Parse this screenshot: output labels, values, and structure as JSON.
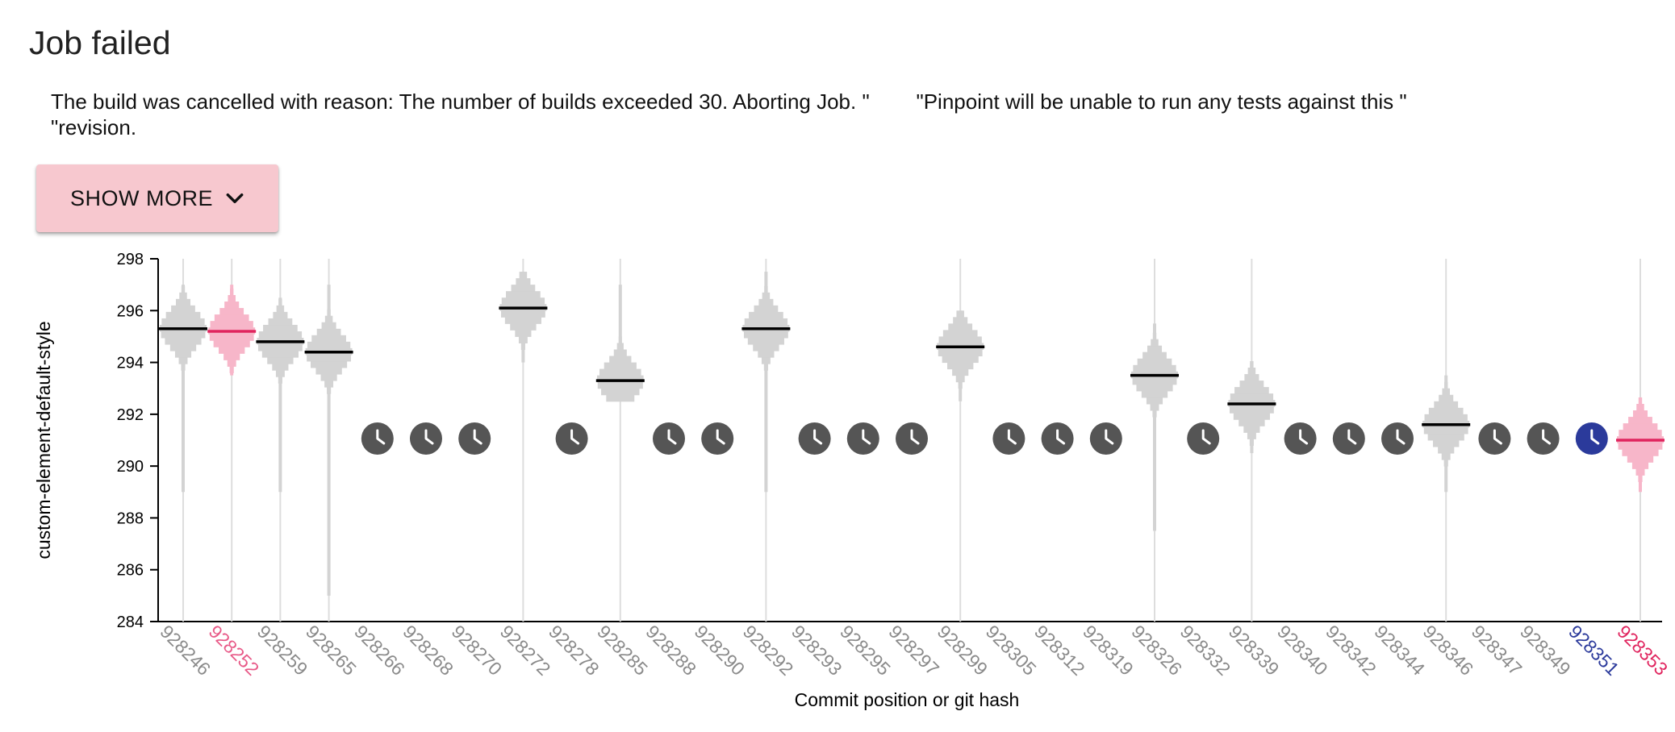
{
  "page": {
    "title": "Job failed",
    "message": "The build was cancelled with reason: The number of builds exceeded 30. Aborting Job. \"        \"Pinpoint will be unable to run any tests against this \"\n\"revision.",
    "show_more_label": "SHOW MORE",
    "show_more_icon": "chevron-down-icon"
  },
  "colors": {
    "button_bg": "#f7c8cf",
    "sample": "#d3d3d3",
    "sample_highlight": "#f7b6c9",
    "median": "#000000",
    "median_highlight": "#e0245e",
    "pending_icon": "#555555",
    "pending_icon_selected": "#2b3a9b",
    "label": "#8a8a8a",
    "label_pink": "#e85a88",
    "label_blue": "#2b3a9b",
    "label_red": "#e0245e"
  },
  "chart_data": {
    "type": "scatter",
    "title": "",
    "xlabel": "Commit position or git hash",
    "ylabel": "custom-element-default-style",
    "ylim": [
      284,
      298
    ],
    "yticks": [
      "284",
      "286",
      "288",
      "290",
      "292",
      "294",
      "296",
      "298"
    ],
    "commits": [
      {
        "label": "928246",
        "state": "done",
        "median": 295.3,
        "range": [
          289.0,
          297.0
        ],
        "label_color": "gray"
      },
      {
        "label": "928252",
        "state": "done",
        "median": 295.2,
        "range": [
          293.5,
          297.0
        ],
        "label_color": "pink",
        "highlight": true
      },
      {
        "label": "928259",
        "state": "done",
        "median": 294.8,
        "range": [
          289.0,
          296.5
        ],
        "label_color": "gray"
      },
      {
        "label": "928265",
        "state": "done",
        "median": 294.4,
        "range": [
          285.0,
          297.0
        ],
        "label_color": "gray"
      },
      {
        "label": "928266",
        "state": "pending",
        "label_color": "gray"
      },
      {
        "label": "928268",
        "state": "pending",
        "label_color": "gray"
      },
      {
        "label": "928270",
        "state": "pending",
        "label_color": "gray"
      },
      {
        "label": "928272",
        "state": "done",
        "median": 296.1,
        "range": [
          294.0,
          297.5
        ],
        "label_color": "gray"
      },
      {
        "label": "928278",
        "state": "pending",
        "label_color": "gray"
      },
      {
        "label": "928285",
        "state": "done",
        "median": 293.3,
        "range": [
          292.5,
          297.0
        ],
        "label_color": "gray"
      },
      {
        "label": "928288",
        "state": "pending",
        "label_color": "gray"
      },
      {
        "label": "928290",
        "state": "pending",
        "label_color": "gray"
      },
      {
        "label": "928292",
        "state": "done",
        "median": 295.3,
        "range": [
          289.0,
          297.5
        ],
        "label_color": "gray"
      },
      {
        "label": "928293",
        "state": "pending",
        "label_color": "gray"
      },
      {
        "label": "928295",
        "state": "pending",
        "label_color": "gray"
      },
      {
        "label": "928297",
        "state": "pending",
        "label_color": "gray"
      },
      {
        "label": "928299",
        "state": "done",
        "median": 294.6,
        "range": [
          292.5,
          296.0
        ],
        "label_color": "gray"
      },
      {
        "label": "928305",
        "state": "pending",
        "label_color": "gray"
      },
      {
        "label": "928312",
        "state": "pending",
        "label_color": "gray"
      },
      {
        "label": "928319",
        "state": "pending",
        "label_color": "gray"
      },
      {
        "label": "928326",
        "state": "done",
        "median": 293.5,
        "range": [
          287.5,
          295.5
        ],
        "label_color": "gray"
      },
      {
        "label": "928332",
        "state": "pending",
        "label_color": "gray"
      },
      {
        "label": "928339",
        "state": "done",
        "median": 292.4,
        "range": [
          290.5,
          294.0
        ],
        "label_color": "gray"
      },
      {
        "label": "928340",
        "state": "pending",
        "label_color": "gray"
      },
      {
        "label": "928342",
        "state": "pending",
        "label_color": "gray"
      },
      {
        "label": "928344",
        "state": "pending",
        "label_color": "gray"
      },
      {
        "label": "928346",
        "state": "done",
        "median": 291.6,
        "range": [
          289.0,
          293.5
        ],
        "label_color": "gray"
      },
      {
        "label": "928347",
        "state": "pending",
        "label_color": "gray"
      },
      {
        "label": "928349",
        "state": "pending",
        "label_color": "gray"
      },
      {
        "label": "928351",
        "state": "pending",
        "label_color": "blue",
        "selected": true
      },
      {
        "label": "928353",
        "state": "done",
        "median": 291.0,
        "range": [
          289.0,
          292.5
        ],
        "label_color": "red",
        "highlight": true
      }
    ]
  }
}
